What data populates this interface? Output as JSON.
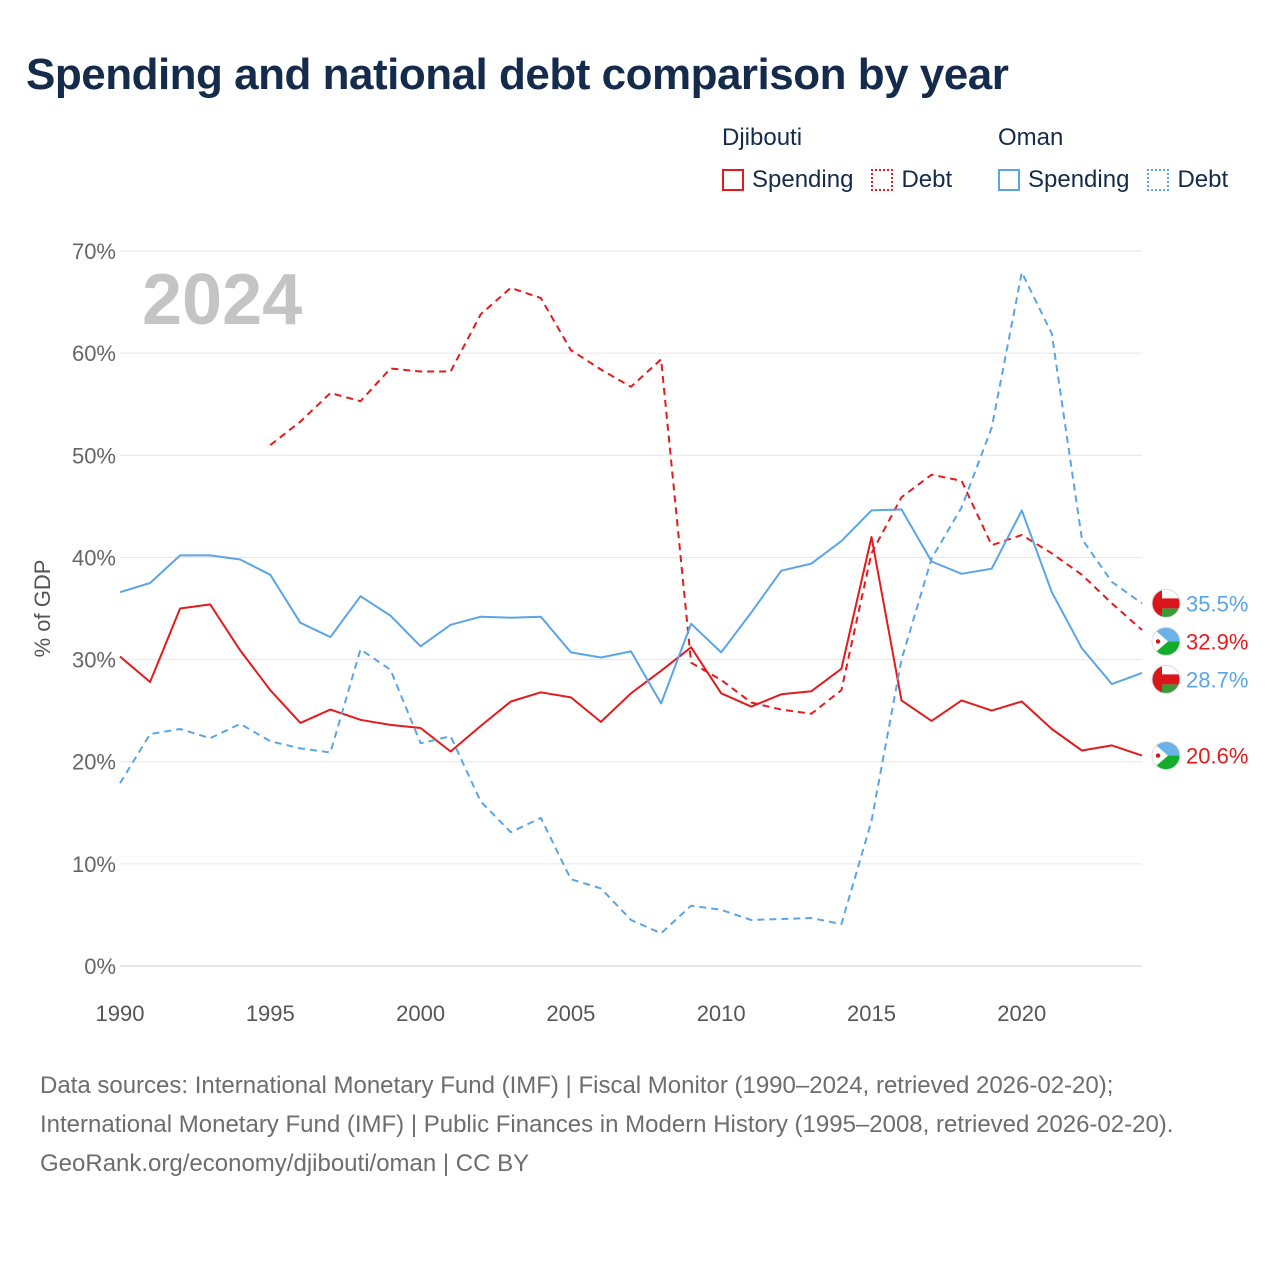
{
  "title": "Spending and national debt comparison by year",
  "legend": {
    "groups": [
      {
        "name": "Djibouti",
        "items": [
          {
            "label": "Spending",
            "color": "#e41a1c",
            "style": "solid"
          },
          {
            "label": "Debt",
            "color": "#e41a1c",
            "style": "dotted"
          }
        ]
      },
      {
        "name": "Oman",
        "items": [
          {
            "label": "Spending",
            "color": "#5aa5e6",
            "style": "solid"
          },
          {
            "label": "Debt",
            "color": "#5aa5e6",
            "style": "dotted"
          }
        ]
      }
    ]
  },
  "chart_data": {
    "type": "line",
    "year_watermark": "2024",
    "ylabel": "% of GDP",
    "xlabel": "",
    "xlim": [
      1990,
      2024
    ],
    "ylim": [
      0,
      70
    ],
    "x_ticks": [
      "1990",
      "1995",
      "2000",
      "2005",
      "2010",
      "2015",
      "2020"
    ],
    "y_ticks": [
      "0%",
      "10%",
      "20%",
      "30%",
      "40%",
      "50%",
      "60%",
      "70%"
    ],
    "grid": true,
    "series": [
      {
        "name": "Djibouti Spending",
        "country": "Djibouti",
        "metric": "Spending",
        "color": "#e41a1c",
        "dashed": false,
        "x": [
          1990,
          1991,
          1992,
          1993,
          1994,
          1995,
          1996,
          1997,
          1998,
          1999,
          2000,
          2001,
          2002,
          2003,
          2004,
          2005,
          2006,
          2007,
          2008,
          2009,
          2010,
          2011,
          2012,
          2013,
          2014,
          2015,
          2016,
          2017,
          2018,
          2019,
          2020,
          2021,
          2022,
          2023,
          2024
        ],
        "values": [
          30.3,
          27.8,
          35.0,
          35.4,
          30.9,
          27.0,
          23.8,
          25.1,
          24.1,
          23.6,
          23.3,
          21.0,
          23.5,
          25.9,
          26.8,
          26.3,
          23.9,
          26.7,
          28.9,
          31.2,
          26.7,
          25.4,
          26.6,
          26.9,
          29.1,
          42.0,
          26.0,
          24.0,
          26.0,
          25.0,
          25.9,
          23.2,
          21.1,
          21.6,
          20.6
        ],
        "end_label": "20.6%"
      },
      {
        "name": "Djibouti Debt",
        "country": "Djibouti",
        "metric": "Debt",
        "color": "#e41a1c",
        "dashed": true,
        "x": [
          1995,
          1996,
          1997,
          1998,
          1999,
          2000,
          2001,
          2002,
          2003,
          2004,
          2005,
          2006,
          2007,
          2008,
          2009,
          2010,
          2011,
          2012,
          2013,
          2014,
          2015,
          2016,
          2017,
          2018,
          2019,
          2020,
          2021,
          2022,
          2023,
          2024
        ],
        "values": [
          51.0,
          53.3,
          56.1,
          55.3,
          58.5,
          58.2,
          58.2,
          63.8,
          66.4,
          65.4,
          60.3,
          58.4,
          56.7,
          59.4,
          29.7,
          28.0,
          25.8,
          25.1,
          24.7,
          27.0,
          40.4,
          45.9,
          48.1,
          47.5,
          41.2,
          42.2,
          40.4,
          38.3,
          35.5,
          32.9
        ],
        "end_label": "32.9%"
      },
      {
        "name": "Oman Spending",
        "country": "Oman",
        "metric": "Spending",
        "color": "#5aa5e6",
        "dashed": false,
        "x": [
          1990,
          1991,
          1992,
          1993,
          1994,
          1995,
          1996,
          1997,
          1998,
          1999,
          2000,
          2001,
          2002,
          2003,
          2004,
          2005,
          2006,
          2007,
          2008,
          2009,
          2010,
          2011,
          2012,
          2013,
          2014,
          2015,
          2016,
          2017,
          2018,
          2019,
          2020,
          2021,
          2022,
          2023,
          2024
        ],
        "values": [
          36.6,
          37.5,
          40.2,
          40.2,
          39.8,
          38.3,
          33.6,
          32.2,
          36.2,
          34.3,
          31.3,
          33.4,
          34.2,
          34.1,
          34.2,
          30.7,
          30.2,
          30.8,
          25.7,
          33.5,
          30.7,
          34.6,
          38.7,
          39.4,
          41.6,
          44.6,
          44.7,
          39.6,
          38.4,
          38.9,
          44.6,
          36.6,
          31.1,
          27.6,
          28.7
        ],
        "end_label": "28.7%"
      },
      {
        "name": "Oman Debt",
        "country": "Oman",
        "metric": "Debt",
        "color": "#5aa5e6",
        "dashed": true,
        "x": [
          1990,
          1991,
          1992,
          1993,
          1994,
          1995,
          1996,
          1997,
          1998,
          1999,
          2000,
          2001,
          2002,
          2003,
          2004,
          2005,
          2006,
          2007,
          2008,
          2009,
          2010,
          2011,
          2012,
          2013,
          2014,
          2015,
          2016,
          2017,
          2018,
          2019,
          2020,
          2021,
          2022,
          2023,
          2024
        ],
        "values": [
          17.9,
          22.7,
          23.2,
          22.3,
          23.7,
          22.0,
          21.3,
          20.9,
          31.0,
          29.0,
          21.8,
          22.5,
          16.1,
          13.1,
          14.5,
          8.5,
          7.6,
          4.5,
          3.2,
          5.9,
          5.5,
          4.5,
          4.6,
          4.7,
          4.1,
          14.2,
          30.0,
          39.9,
          44.9,
          52.7,
          67.9,
          61.9,
          41.8,
          37.6,
          35.5
        ],
        "end_label": "35.5%"
      }
    ]
  },
  "footer": {
    "sources": "Data sources: International Monetary Fund (IMF) | Fiscal Monitor (1990–2024, retrieved 2026-02-20); International Monetary Fund (IMF) | Public Finances in Modern History (1995–2008, retrieved 2026-02-20).",
    "credit": "GeoRank.org/economy/djibouti/oman | CC BY"
  }
}
